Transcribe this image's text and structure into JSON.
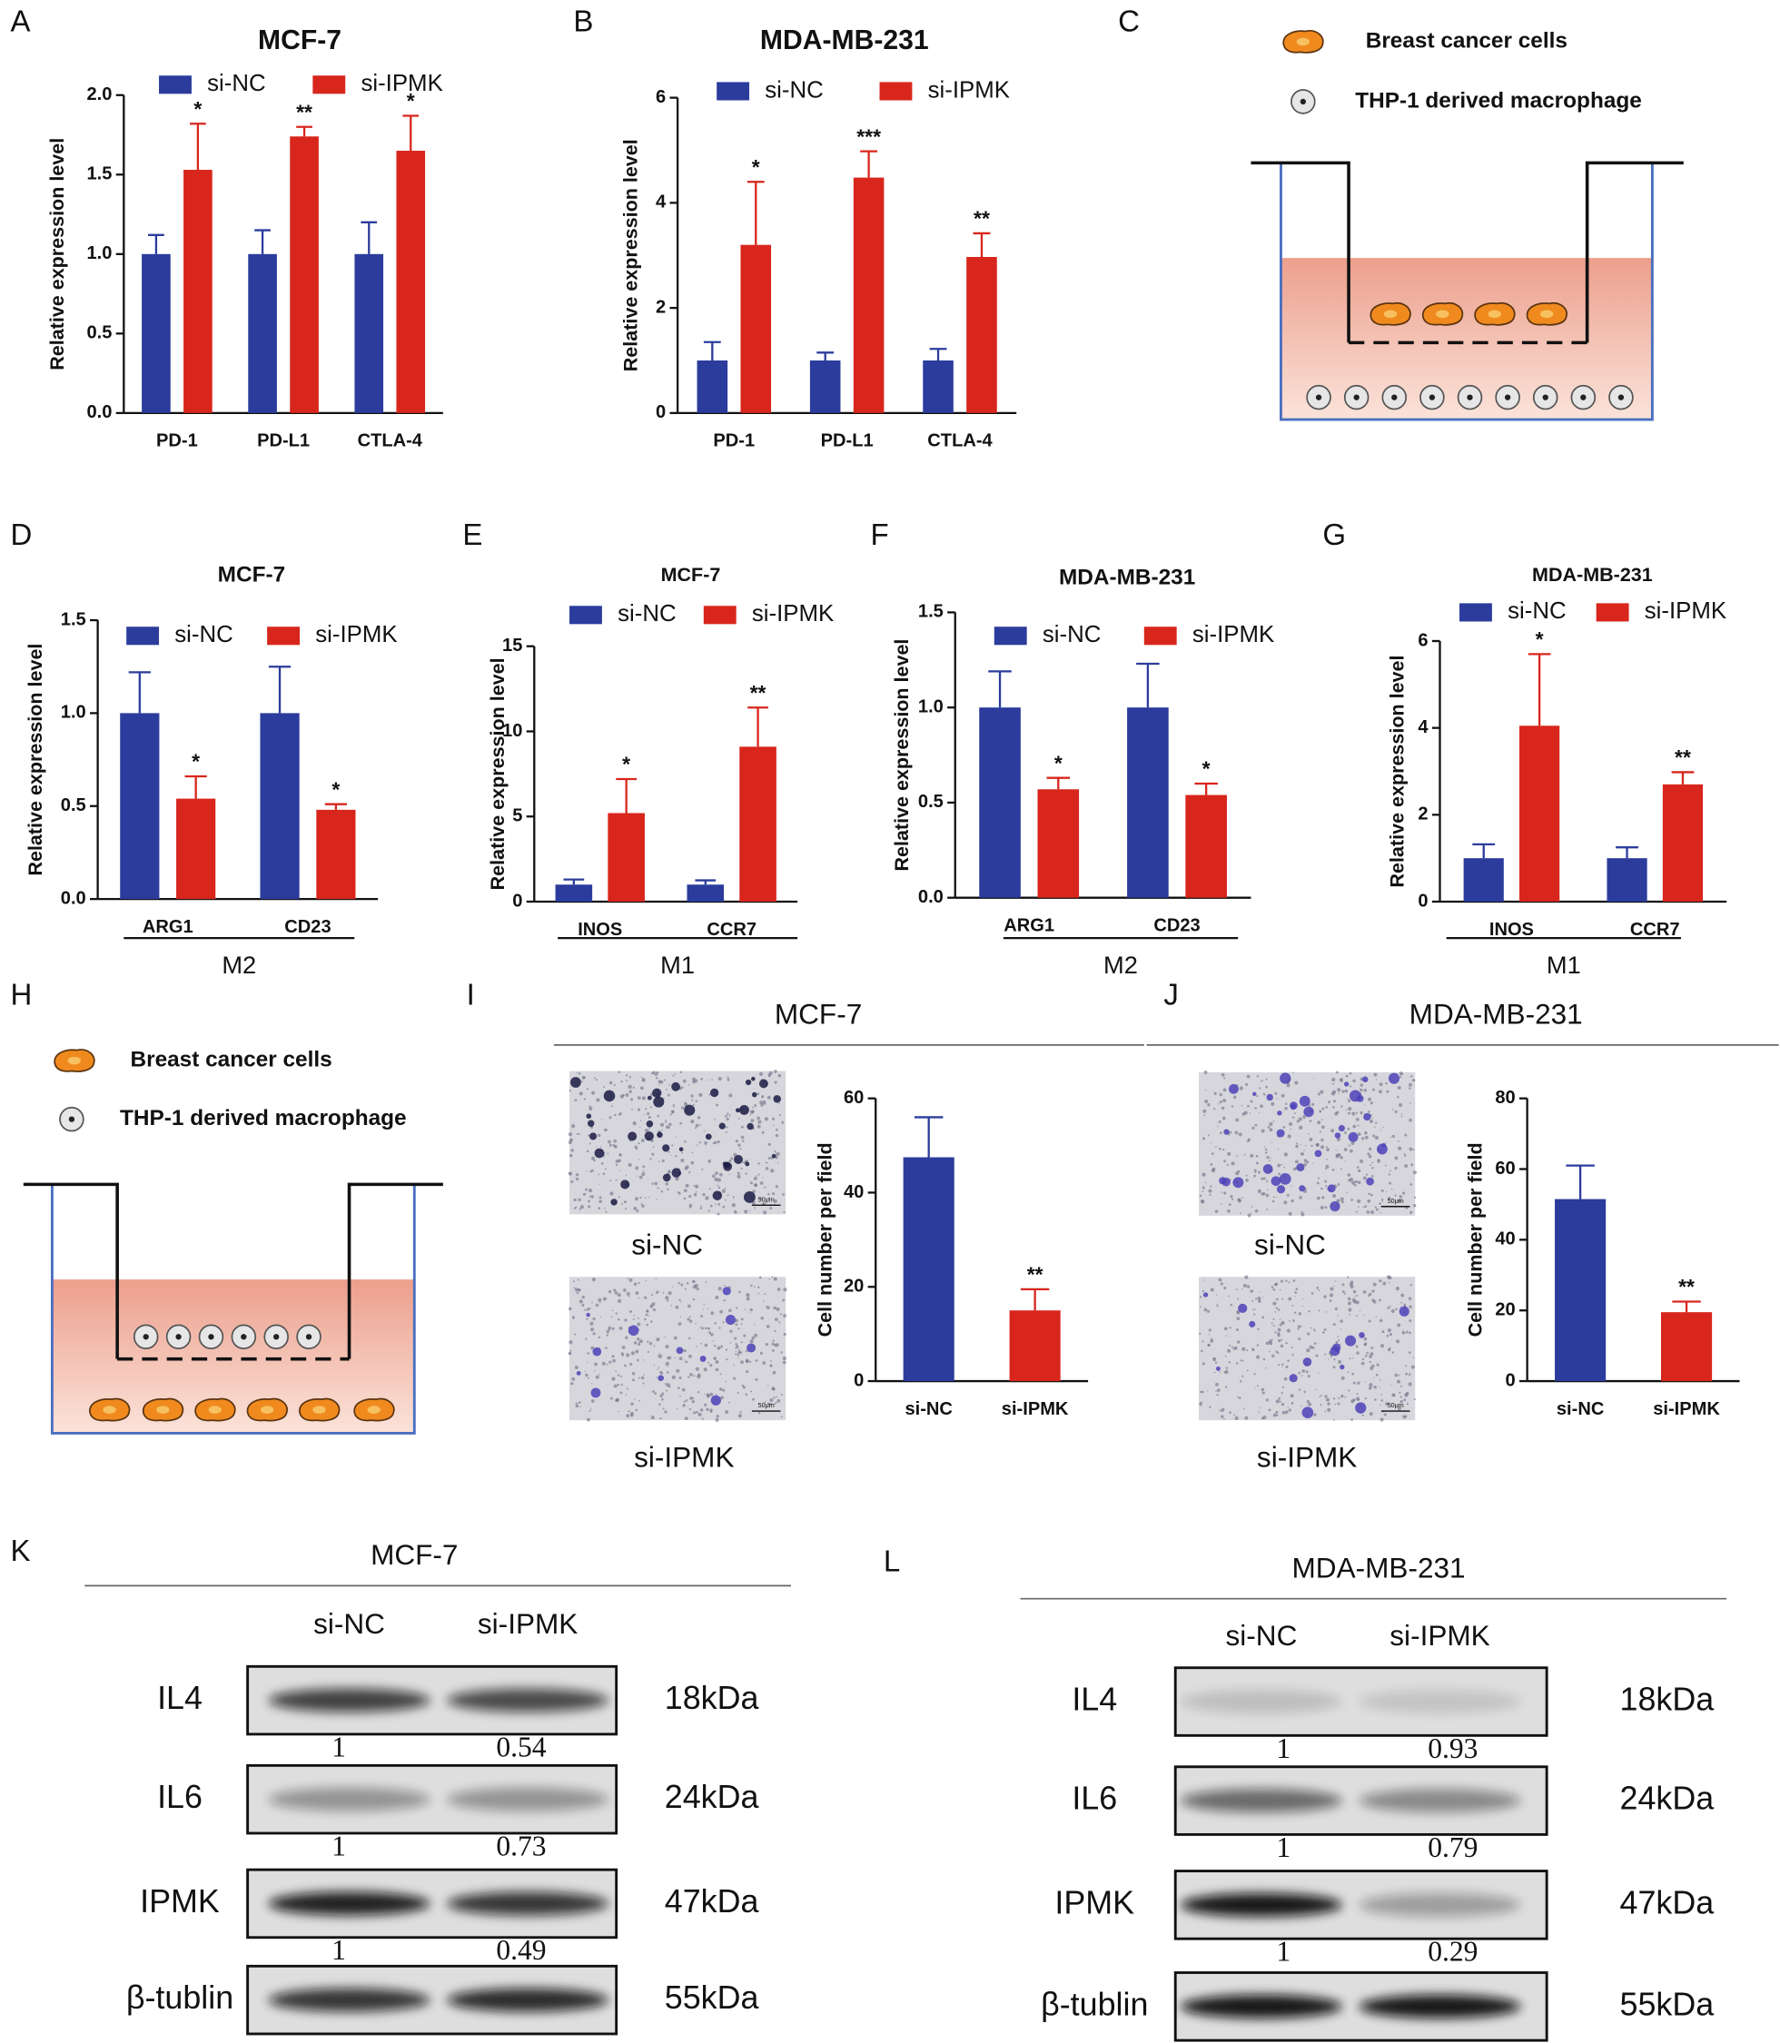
{
  "panel_labels": [
    "A",
    "B",
    "C",
    "D",
    "E",
    "F",
    "G",
    "H",
    "I",
    "J",
    "K",
    "L"
  ],
  "chart_data": [
    {
      "type": "bar",
      "title": "MCF-7",
      "ylabel": "Relative expression level",
      "categories": [
        "PD-1",
        "PD-L1",
        "CTLA-4"
      ],
      "series": [
        {
          "name": "si-NC",
          "color": "#2b3c9c",
          "values": [
            1,
            1,
            1
          ],
          "errors": [
            0.12,
            0.15,
            0.2
          ]
        },
        {
          "name": "si-IPMK",
          "color": "#d8261c",
          "values": [
            1.53,
            1.74,
            1.65
          ],
          "errors": [
            0.29,
            0.06,
            0.22
          ],
          "significance": [
            "*",
            "**",
            "*"
          ]
        }
      ],
      "ylim": [
        0,
        2
      ],
      "yticks": [
        {
          "value": 0,
          "label": "0.0"
        },
        {
          "value": 0.5,
          "label": "0.5"
        },
        {
          "value": 1,
          "label": "1.0"
        },
        {
          "value": 1.5,
          "label": "1.5"
        },
        {
          "value": 2,
          "label": "2.0"
        }
      ]
    },
    {
      "type": "bar",
      "title": "MDA-MB-231",
      "ylabel": "Relative expression level",
      "categories": [
        "PD-1",
        "PD-L1",
        "CTLA-4"
      ],
      "series": [
        {
          "name": "si-NC",
          "color": "#2b3c9c",
          "values": [
            1,
            1,
            1
          ],
          "errors": [
            0.35,
            0.15,
            0.22
          ]
        },
        {
          "name": "si-IPMK",
          "color": "#d8261c",
          "values": [
            3.2,
            4.48,
            2.97
          ],
          "errors": [
            1.2,
            0.5,
            0.45
          ],
          "significance": [
            "*",
            "***",
            "**"
          ]
        }
      ],
      "ylim": [
        0,
        6
      ],
      "yticks": [
        0,
        2,
        4,
        6
      ]
    },
    {
      "type": "bar",
      "title": "MCF-7",
      "ylabel": "Relative expression level",
      "categories": [
        "ARG1",
        "CD23"
      ],
      "group_label": "M2",
      "series": [
        {
          "name": "si-NC",
          "color": "#2b3c9c",
          "values": [
            1,
            1
          ],
          "errors": [
            0.22,
            0.25
          ]
        },
        {
          "name": "si-IPMK",
          "color": "#d8261c",
          "values": [
            0.54,
            0.48
          ],
          "errors": [
            0.12,
            0.03
          ],
          "significance": [
            "*",
            "*"
          ]
        }
      ],
      "ylim": [
        0,
        1.5
      ],
      "yticks": [
        {
          "value": 0,
          "label": "0.0"
        },
        {
          "value": 0.5,
          "label": "0.5"
        },
        {
          "value": 1,
          "label": "1.0"
        },
        {
          "value": 1.5,
          "label": "1.5"
        }
      ]
    },
    {
      "type": "bar",
      "title": "MCF-7",
      "ylabel": "Relative expression level",
      "categories": [
        "INOS",
        "CCR7"
      ],
      "group_label": "M1",
      "series": [
        {
          "name": "si-NC",
          "color": "#2b3c9c",
          "values": [
            1,
            1
          ],
          "errors": [
            0.3,
            0.25
          ]
        },
        {
          "name": "si-IPMK",
          "color": "#d8261c",
          "values": [
            5.2,
            9.1
          ],
          "errors": [
            2,
            2.3
          ],
          "significance": [
            "*",
            "**"
          ]
        }
      ],
      "ylim": [
        0,
        15
      ],
      "yticks": [
        0,
        5,
        10,
        15
      ]
    },
    {
      "type": "bar",
      "title": "MDA-MB-231",
      "ylabel": "Relative expression level",
      "categories": [
        "ARG1",
        "CD23"
      ],
      "group_label": "M2",
      "series": [
        {
          "name": "si-NC",
          "color": "#2b3c9c",
          "values": [
            1,
            1
          ],
          "errors": [
            0.19,
            0.23
          ]
        },
        {
          "name": "si-IPMK",
          "color": "#d8261c",
          "values": [
            0.57,
            0.54
          ],
          "errors": [
            0.06,
            0.06
          ],
          "significance": [
            "*",
            "*"
          ]
        }
      ],
      "ylim": [
        0,
        1.5
      ],
      "yticks": [
        {
          "value": 0,
          "label": "0.0"
        },
        {
          "value": 0.5,
          "label": "0.5"
        },
        {
          "value": 1,
          "label": "1.0"
        },
        {
          "value": 1.5,
          "label": "1.5"
        }
      ]
    },
    {
      "type": "bar",
      "title": "MDA-MB-231",
      "ylabel": "Relative expression level",
      "categories": [
        "INOS",
        "CCR7"
      ],
      "group_label": "M1",
      "series": [
        {
          "name": "si-NC",
          "color": "#2b3c9c",
          "values": [
            1,
            1
          ],
          "errors": [
            0.32,
            0.25
          ]
        },
        {
          "name": "si-IPMK",
          "color": "#d8261c",
          "values": [
            4.05,
            2.7
          ],
          "errors": [
            1.65,
            0.28
          ],
          "significance": [
            "*",
            "**"
          ]
        }
      ],
      "ylim": [
        0,
        6
      ],
      "yticks": [
        0,
        2,
        4,
        6
      ]
    },
    {
      "type": "bar",
      "ylabel": "Cell number per field",
      "categories": [
        "si-NC",
        "si-IPMK"
      ],
      "values": [
        47.5,
        15
      ],
      "errors": [
        8.5,
        4.5
      ],
      "colors": [
        "#2b3c9c",
        "#d8261c"
      ],
      "significance": [
        null,
        "**"
      ],
      "ylim": [
        0,
        60
      ],
      "yticks": [
        0,
        20,
        40,
        60
      ]
    },
    {
      "type": "bar",
      "ylabel": "Cell number per field",
      "categories": [
        "si-NC",
        "si-IPMK"
      ],
      "values": [
        51.5,
        19.5
      ],
      "errors": [
        9.5,
        3
      ],
      "colors": [
        "#2b3c9c",
        "#d8261c"
      ],
      "significance": [
        null,
        "**"
      ],
      "ylim": [
        0,
        80
      ],
      "yticks": [
        0,
        20,
        40,
        60,
        80
      ]
    }
  ],
  "diagrams": [
    {
      "legend": [
        "Breast cancer cells",
        "THP-1 derived macrophage"
      ]
    },
    {
      "legend": [
        "Breast cancer cells",
        "THP-1 derived macrophage"
      ]
    }
  ],
  "micrographs": [
    {
      "title": "MCF-7",
      "labels": [
        "si-NC",
        "si-IPMK"
      ],
      "scale_bar": "50μm"
    },
    {
      "title": "MDA-MB-231",
      "labels": [
        "si-NC",
        "si-IPMK"
      ],
      "scale_bar": "50μm"
    }
  ],
  "blots": [
    {
      "title": "MCF-7",
      "columns": [
        "si-NC",
        "si-IPMK"
      ],
      "rows": [
        {
          "protein": "IL4",
          "size": "18kDa",
          "ratios": [
            1,
            0.54
          ]
        },
        {
          "protein": "IL6",
          "size": "24kDa",
          "ratios": [
            1,
            0.73
          ]
        },
        {
          "protein": "IPMK",
          "size": "47kDa",
          "ratios": [
            1,
            0.49
          ]
        },
        {
          "protein": "β-tublin",
          "size": "55kDa"
        }
      ]
    },
    {
      "title": "MDA-MB-231",
      "columns": [
        "si-NC",
        "si-IPMK"
      ],
      "rows": [
        {
          "protein": "IL4",
          "size": "18kDa",
          "ratios": [
            1,
            0.93
          ]
        },
        {
          "protein": "IL6",
          "size": "24kDa",
          "ratios": [
            1,
            0.79
          ]
        },
        {
          "protein": "IPMK",
          "size": "47kDa",
          "ratios": [
            1,
            0.29
          ]
        },
        {
          "protein": "β-tublin",
          "size": "55kDa"
        }
      ]
    }
  ]
}
